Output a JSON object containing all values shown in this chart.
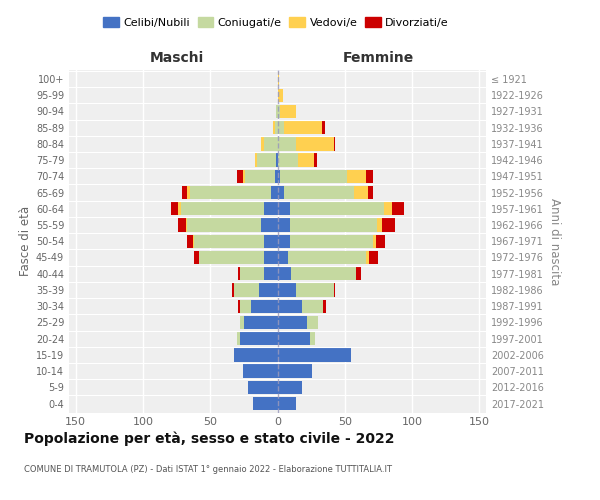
{
  "age_groups": [
    "0-4",
    "5-9",
    "10-14",
    "15-19",
    "20-24",
    "25-29",
    "30-34",
    "35-39",
    "40-44",
    "45-49",
    "50-54",
    "55-59",
    "60-64",
    "65-69",
    "70-74",
    "75-79",
    "80-84",
    "85-89",
    "90-94",
    "95-99",
    "100+"
  ],
  "birth_years": [
    "2017-2021",
    "2012-2016",
    "2007-2011",
    "2002-2006",
    "1997-2001",
    "1992-1996",
    "1987-1991",
    "1982-1986",
    "1977-1981",
    "1972-1976",
    "1967-1971",
    "1962-1966",
    "1957-1961",
    "1952-1956",
    "1947-1951",
    "1942-1946",
    "1937-1941",
    "1932-1936",
    "1927-1931",
    "1922-1926",
    "≤ 1921"
  ],
  "maschi": {
    "celibi": [
      18,
      22,
      26,
      32,
      28,
      25,
      20,
      14,
      10,
      10,
      10,
      12,
      10,
      5,
      2,
      1,
      0,
      0,
      0,
      0,
      0
    ],
    "coniugati": [
      0,
      0,
      0,
      0,
      2,
      3,
      8,
      18,
      18,
      48,
      52,
      55,
      62,
      60,
      22,
      14,
      10,
      2,
      1,
      0,
      0
    ],
    "vedovi": [
      0,
      0,
      0,
      0,
      0,
      0,
      0,
      0,
      0,
      0,
      1,
      1,
      2,
      2,
      2,
      2,
      2,
      1,
      0,
      0,
      0
    ],
    "divorziati": [
      0,
      0,
      0,
      0,
      0,
      0,
      1,
      2,
      1,
      4,
      4,
      6,
      5,
      4,
      4,
      0,
      0,
      0,
      0,
      0,
      0
    ]
  },
  "femmine": {
    "nubili": [
      14,
      18,
      26,
      55,
      24,
      22,
      18,
      14,
      10,
      8,
      9,
      9,
      9,
      5,
      2,
      0,
      0,
      0,
      0,
      0,
      0
    ],
    "coniugate": [
      0,
      0,
      0,
      0,
      4,
      8,
      16,
      28,
      48,
      58,
      62,
      65,
      70,
      52,
      50,
      15,
      14,
      5,
      2,
      0,
      0
    ],
    "vedove": [
      0,
      0,
      0,
      0,
      0,
      0,
      0,
      0,
      0,
      2,
      2,
      4,
      6,
      10,
      14,
      12,
      28,
      28,
      12,
      4,
      1
    ],
    "divorziate": [
      0,
      0,
      0,
      0,
      0,
      0,
      2,
      1,
      4,
      7,
      7,
      9,
      9,
      4,
      5,
      2,
      1,
      2,
      0,
      0,
      0
    ]
  },
  "colors": {
    "celibi": "#4472C4",
    "coniugati": "#C5D9A0",
    "vedovi": "#FFD050",
    "divorziati": "#CC0000"
  },
  "title": "Popolazione per età, sesso e stato civile - 2022",
  "subtitle": "COMUNE DI TRAMUTOLA (PZ) - Dati ISTAT 1° gennaio 2022 - Elaborazione TUTTITALIA.IT",
  "xlabel_maschi": "Maschi",
  "xlabel_femmine": "Femmine",
  "ylabel_left": "Fasce di età",
  "ylabel_right": "Anni di nascita",
  "xlim": 155,
  "bg_color": "#efefef"
}
